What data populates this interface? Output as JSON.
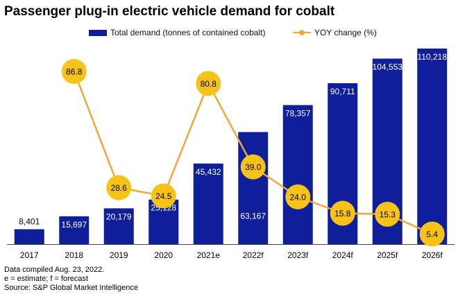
{
  "title": "Passenger plug-in electric vehicle demand for cobalt",
  "legend": {
    "bar_label": "Total demand (tonnes of contained cobalt)",
    "line_label": "YOY change (%)"
  },
  "colors": {
    "bar": "#0f1f9a",
    "line": "#f0a73a",
    "marker": "#f7c31b",
    "axis": "#444444"
  },
  "footnotes": {
    "line1": "Data compiled Aug. 23, 2022.",
    "line2": "e = estimate; f = forecast",
    "line3": "Source: S&P Global Market Intelligence"
  },
  "chart_data": {
    "type": "bar",
    "title": "Passenger plug-in electric vehicle demand for cobalt",
    "categories": [
      "2017",
      "2018",
      "2019",
      "2020",
      "2021e",
      "2022f",
      "2023f",
      "2024f",
      "2025f",
      "2026f"
    ],
    "series": [
      {
        "name": "Total demand (tonnes of contained cobalt)",
        "kind": "bar",
        "values": [
          8401,
          15697,
          20179,
          25128,
          45432,
          63167,
          78357,
          90711,
          104553,
          110218
        ],
        "labels": [
          "8,401",
          "15,697",
          "20,179",
          "25,128",
          "45,432",
          "63,167",
          "78,357",
          "90,711",
          "104,553",
          "110,218"
        ]
      },
      {
        "name": "YOY change (%)",
        "kind": "line",
        "values": [
          null,
          86.8,
          28.6,
          24.5,
          80.8,
          39.0,
          24.0,
          15.8,
          15.3,
          5.4
        ],
        "labels": [
          "",
          "86.8",
          "28.6",
          "24.5",
          "80.8",
          "39.0",
          "24.0",
          "15.8",
          "15.3",
          "5.4"
        ]
      }
    ],
    "ylim_bar": [
      0,
      110218
    ],
    "ylim_line": [
      0,
      100
    ],
    "xlabel": "",
    "ylabel": "",
    "grid": false,
    "legend_position": "top"
  }
}
